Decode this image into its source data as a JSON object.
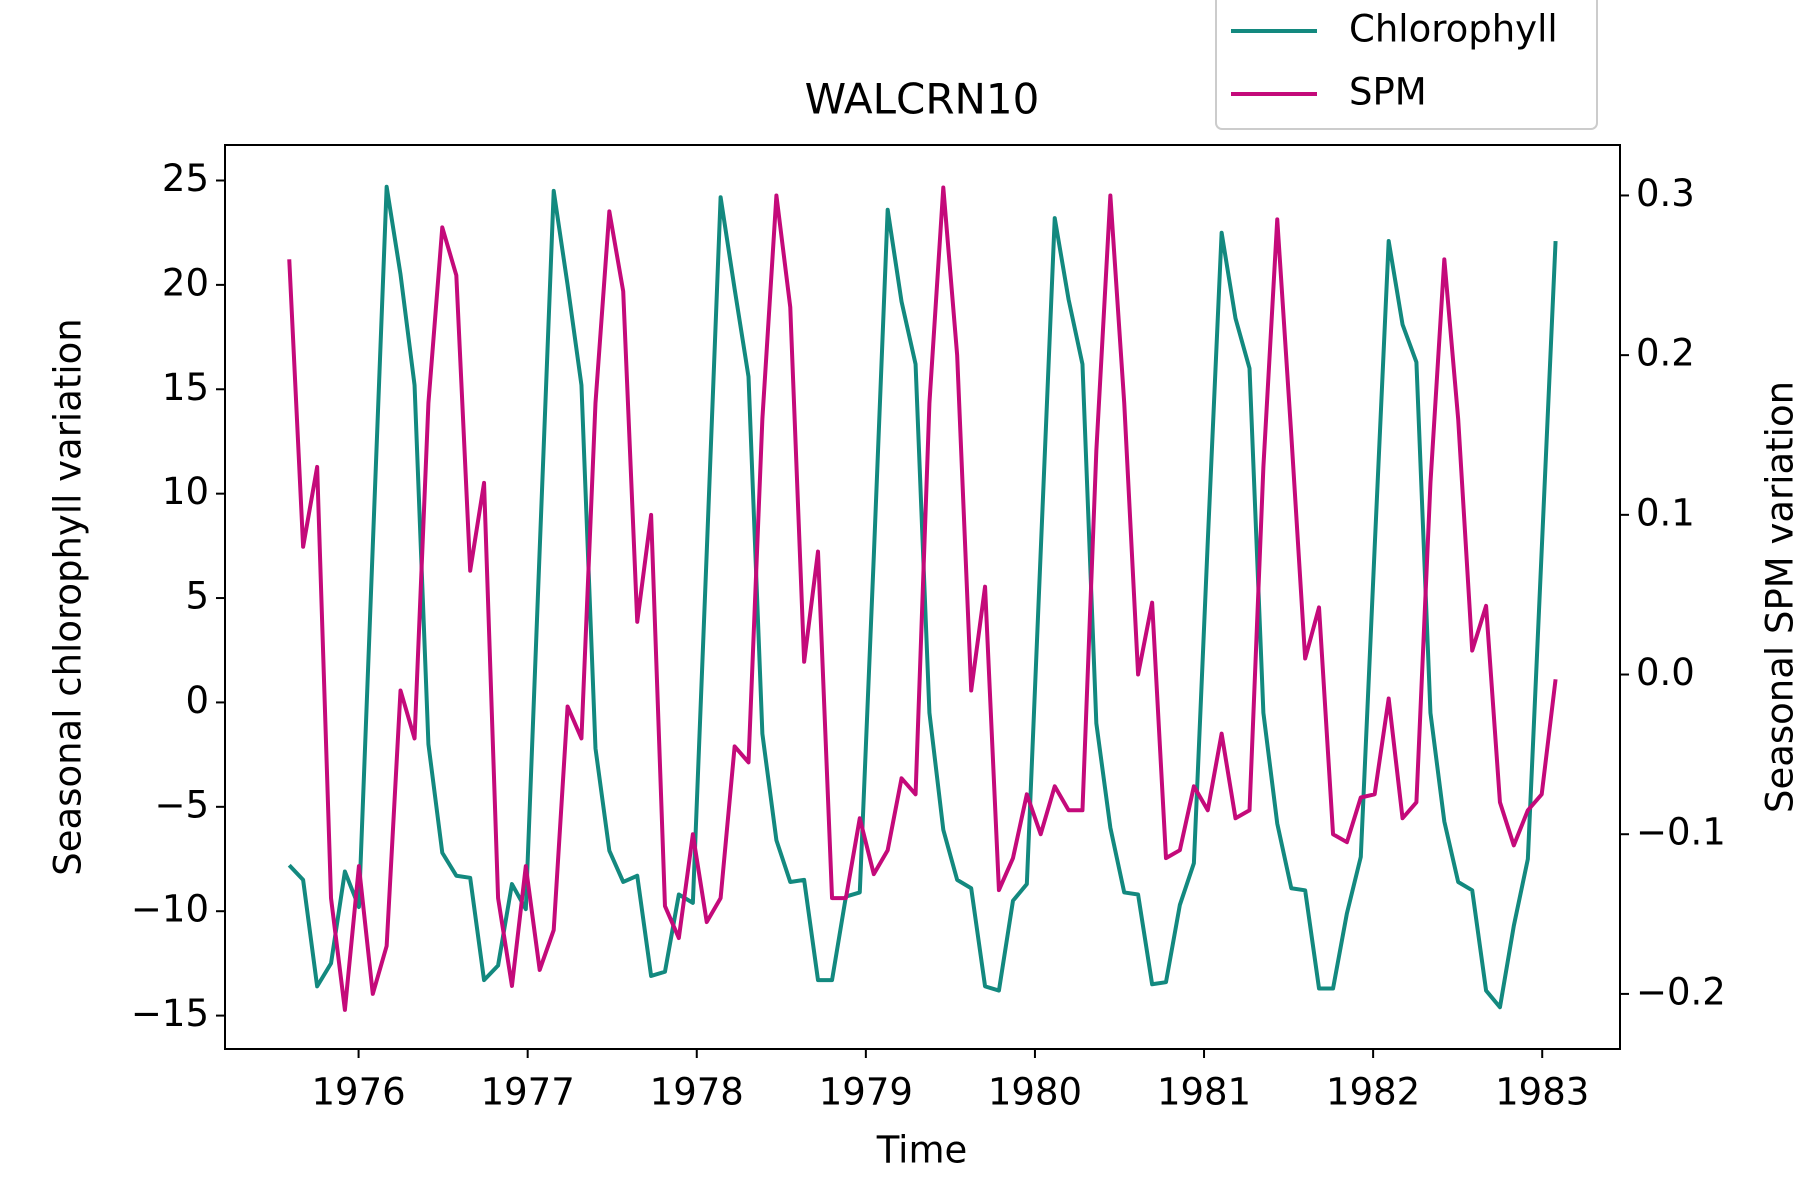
{
  "chart_data": {
    "type": "line",
    "title": "WALCRN10",
    "x_label": "Time",
    "y_label": "Seasonal chlorophyll variation",
    "y2_label": "Seasonal SPM variation",
    "x": [
      1975.59,
      1975.672,
      1975.755,
      1975.837,
      1975.919,
      1976.002,
      1976.084,
      1976.166,
      1976.248,
      1976.331,
      1976.413,
      1976.495,
      1976.578,
      1976.66,
      1976.742,
      1976.825,
      1976.907,
      1976.989,
      1977.071,
      1977.154,
      1977.236,
      1977.318,
      1977.401,
      1977.483,
      1977.565,
      1977.648,
      1977.73,
      1977.812,
      1977.894,
      1977.977,
      1978.059,
      1978.141,
      1978.224,
      1978.306,
      1978.388,
      1978.471,
      1978.553,
      1978.635,
      1978.717,
      1978.8,
      1978.882,
      1978.964,
      1979.047,
      1979.129,
      1979.211,
      1979.294,
      1979.376,
      1979.458,
      1979.54,
      1979.623,
      1979.705,
      1979.787,
      1979.87,
      1979.952,
      1980.034,
      1980.117,
      1980.199,
      1980.281,
      1980.363,
      1980.446,
      1980.528,
      1980.61,
      1980.693,
      1980.775,
      1980.857,
      1980.94,
      1981.022,
      1981.104,
      1981.186,
      1981.269,
      1981.351,
      1981.433,
      1981.516,
      1981.598,
      1981.68,
      1981.763,
      1981.845,
      1981.927,
      1982.009,
      1982.092,
      1982.174,
      1982.256,
      1982.339,
      1982.421,
      1982.503,
      1982.586,
      1982.668,
      1982.75,
      1982.832,
      1982.915,
      1982.997,
      1983.079
    ],
    "series": [
      {
        "name": "Chlorophyll",
        "color": "#13897f",
        "values": [
          -7.8,
          -8.5,
          -13.6,
          -12.5,
          -8.1,
          -9.8,
          7.5,
          24.7,
          20.5,
          15.2,
          -2,
          -7.2,
          -8.3,
          -8.4,
          -13.3,
          -12.6,
          -8.7,
          -9.9,
          7.3,
          24.5,
          20,
          15.2,
          -2.2,
          -7.1,
          -8.6,
          -8.3,
          -13.1,
          -12.9,
          -9.2,
          -9.6,
          7.2,
          24.2,
          19.8,
          15.6,
          -1.5,
          -6.6,
          -8.6,
          -8.5,
          -13.3,
          -13.3,
          -9.3,
          -9.1,
          7,
          23.6,
          19.2,
          16.2,
          -0.5,
          -6.1,
          -8.5,
          -8.9,
          -13.6,
          -13.8,
          -9.5,
          -8.7,
          7.2,
          23.2,
          19.3,
          16.2,
          -1,
          -6,
          -9.1,
          -9.2,
          -13.5,
          -13.4,
          -9.7,
          -7.7,
          7.7,
          22.5,
          18.4,
          16,
          -0.5,
          -5.8,
          -8.9,
          -9,
          -13.7,
          -13.7,
          -10.1,
          -7.4,
          7.4,
          22.1,
          18.1,
          16.3,
          -0.5,
          -5.7,
          -8.6,
          -9,
          -13.8,
          -14.6,
          -10.7,
          -7.5,
          7.3,
          22.1
        ]
      },
      {
        "name": "SPM",
        "color": "#c40a7a",
        "axis": "y2",
        "values": [
          0.26,
          0.08,
          0.13,
          -0.14,
          -0.21,
          -0.12,
          -0.2,
          -0.17,
          -0.01,
          -0.04,
          0.17,
          0.28,
          0.25,
          0.065,
          0.12,
          -0.14,
          -0.195,
          -0.12,
          -0.185,
          -0.16,
          -0.02,
          -0.04,
          0.17,
          0.29,
          0.24,
          0.033,
          0.1,
          -0.145,
          -0.165,
          -0.1,
          -0.155,
          -0.14,
          -0.045,
          -0.055,
          0.16,
          0.3,
          0.23,
          0.008,
          0.077,
          -0.14,
          -0.14,
          -0.09,
          -0.125,
          -0.11,
          -0.065,
          -0.075,
          0.17,
          0.305,
          0.2,
          -0.01,
          0.055,
          -0.135,
          -0.115,
          -0.075,
          -0.1,
          -0.07,
          -0.085,
          -0.085,
          0.14,
          0.3,
          0.17,
          0,
          0.045,
          -0.115,
          -0.11,
          -0.07,
          -0.085,
          -0.037,
          -0.09,
          -0.085,
          0.13,
          0.285,
          0.15,
          0.01,
          0.042,
          -0.1,
          -0.105,
          -0.077,
          -0.075,
          -0.015,
          -0.09,
          -0.08,
          0.12,
          0.26,
          0.16,
          0.015,
          0.043,
          -0.08,
          -0.107,
          -0.085,
          -0.075,
          -0.003
        ]
      }
    ],
    "xlim": [
      1975.21,
      1983.46
    ],
    "xticks": [
      1976,
      1977,
      1978,
      1979,
      1980,
      1981,
      1982,
      1983
    ],
    "ylim": [
      -16.6,
      26.7
    ],
    "yticks": [
      {
        "value": -15,
        "label": "−15"
      },
      {
        "value": -10,
        "label": "−10"
      },
      {
        "value": -5,
        "label": "−5"
      },
      0,
      5,
      10,
      15,
      20,
      25
    ],
    "y2lim": [
      -0.2345,
      0.3316
    ],
    "y2ticks": [
      {
        "value": -0.2,
        "label": "−0.2"
      },
      {
        "value": -0.1,
        "label": "−0.1"
      },
      {
        "value": 0,
        "label": "0.0"
      },
      0.1,
      0.2,
      0.3
    ],
    "grid": false,
    "legend": "upper right"
  }
}
